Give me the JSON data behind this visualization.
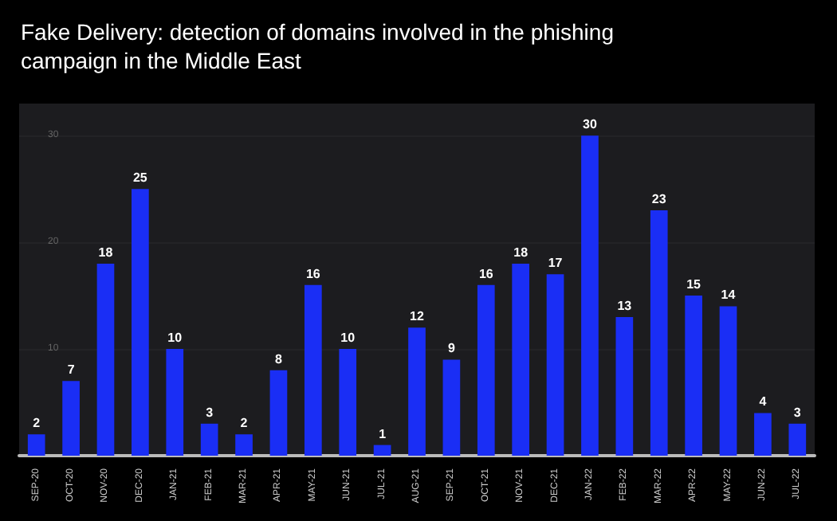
{
  "chart_data": {
    "type": "bar",
    "title": "Fake Delivery: detection of domains involved in the phishing campaign in the Middle East",
    "categories": [
      "SEP-20",
      "OCT-20",
      "NOV-20",
      "DEC-20",
      "JAN-21",
      "FEB-21",
      "MAR-21",
      "APR-21",
      "MAY-21",
      "JUN-21",
      "JUL-21",
      "AUG-21",
      "SEP-21",
      "OCT-21",
      "NOV-21",
      "DEC-21",
      "JAN-22",
      "FEB-22",
      "MAR-22",
      "APR-22",
      "MAY-22",
      "JUN-22",
      "JUL-22"
    ],
    "values": [
      2,
      7,
      18,
      25,
      10,
      3,
      2,
      8,
      16,
      10,
      1,
      12,
      9,
      16,
      18,
      17,
      30,
      13,
      23,
      15,
      14,
      4,
      3
    ],
    "color": "#1a2ef5",
    "ylim": [
      0,
      33
    ],
    "yticks": [
      10,
      20,
      30
    ],
    "grid": "y",
    "data_labels": true
  }
}
